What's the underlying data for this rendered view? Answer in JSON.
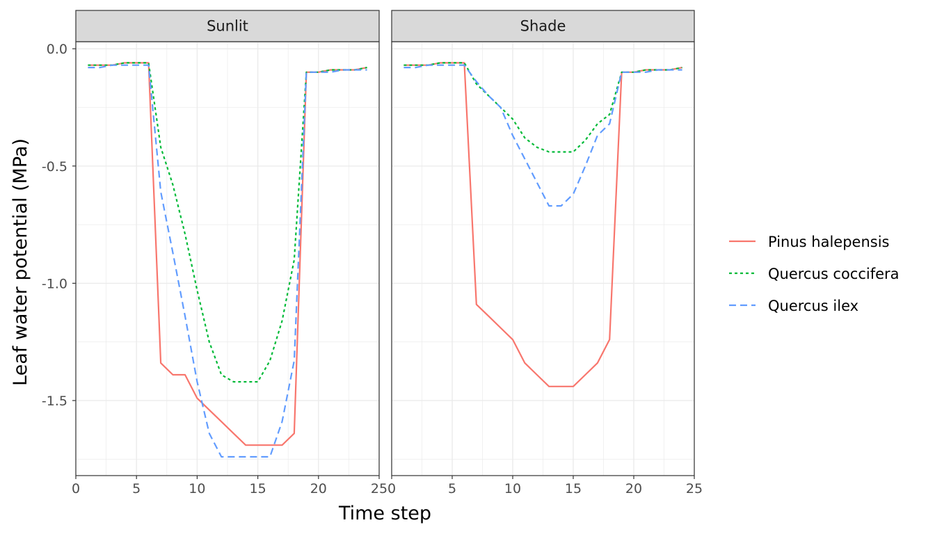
{
  "chart_data": {
    "type": "line",
    "xlabel": "Time step",
    "ylabel": "Leaf water potential (MPa)",
    "xlim": [
      0,
      25
    ],
    "ylim": [
      -1.82,
      0.03
    ],
    "x_ticks": [
      "0",
      "5",
      "10",
      "15",
      "20",
      "25"
    ],
    "y_ticks": [
      "0.0",
      "-0.5",
      "-1.0",
      "-1.5"
    ],
    "grid": true,
    "legend_position": "right",
    "x": [
      1,
      2,
      3,
      4,
      5,
      6,
      7,
      8,
      9,
      10,
      11,
      12,
      13,
      14,
      15,
      16,
      17,
      18,
      19,
      20,
      21,
      22,
      23,
      24
    ],
    "series_styles": [
      {
        "name": "Pinus halepensis",
        "color": "#F8766D",
        "dash": "solid"
      },
      {
        "name": "Quercus coccifera",
        "color": "#00BA38",
        "dash": "dotted"
      },
      {
        "name": "Quercus ilex",
        "color": "#619CFF",
        "dash": "dashed"
      }
    ],
    "panels": [
      {
        "label": "Sunlit",
        "series": [
          {
            "name": "Pinus halepensis",
            "values": [
              -0.07,
              -0.07,
              -0.07,
              -0.06,
              -0.06,
              -0.06,
              -1.34,
              -1.39,
              -1.39,
              -1.49,
              -1.54,
              -1.59,
              -1.64,
              -1.69,
              -1.69,
              -1.69,
              -1.69,
              -1.64,
              -0.1,
              -0.1,
              -0.09,
              -0.09,
              -0.09,
              -0.08
            ]
          },
          {
            "name": "Quercus coccifera",
            "values": [
              -0.07,
              -0.07,
              -0.07,
              -0.06,
              -0.06,
              -0.06,
              -0.42,
              -0.58,
              -0.79,
              -1.03,
              -1.25,
              -1.39,
              -1.42,
              -1.42,
              -1.42,
              -1.33,
              -1.16,
              -0.9,
              -0.1,
              -0.1,
              -0.09,
              -0.09,
              -0.09,
              -0.08
            ]
          },
          {
            "name": "Quercus ilex",
            "values": [
              -0.08,
              -0.08,
              -0.07,
              -0.07,
              -0.07,
              -0.07,
              -0.61,
              -0.87,
              -1.14,
              -1.42,
              -1.64,
              -1.74,
              -1.74,
              -1.74,
              -1.74,
              -1.74,
              -1.59,
              -1.33,
              -0.1,
              -0.1,
              -0.1,
              -0.09,
              -0.09,
              -0.09
            ]
          }
        ]
      },
      {
        "label": "Shade",
        "series": [
          {
            "name": "Pinus halepensis",
            "values": [
              -0.07,
              -0.07,
              -0.07,
              -0.06,
              -0.06,
              -0.06,
              -1.09,
              -1.14,
              -1.19,
              -1.24,
              -1.34,
              -1.39,
              -1.44,
              -1.44,
              -1.44,
              -1.39,
              -1.34,
              -1.24,
              -0.1,
              -0.1,
              -0.09,
              -0.09,
              -0.09,
              -0.08
            ]
          },
          {
            "name": "Quercus coccifera",
            "values": [
              -0.07,
              -0.07,
              -0.07,
              -0.06,
              -0.06,
              -0.06,
              -0.15,
              -0.2,
              -0.25,
              -0.3,
              -0.38,
              -0.42,
              -0.44,
              -0.44,
              -0.44,
              -0.39,
              -0.32,
              -0.28,
              -0.1,
              -0.1,
              -0.09,
              -0.09,
              -0.09,
              -0.08
            ]
          },
          {
            "name": "Quercus ilex",
            "values": [
              -0.08,
              -0.08,
              -0.07,
              -0.07,
              -0.07,
              -0.07,
              -0.14,
              -0.2,
              -0.25,
              -0.37,
              -0.47,
              -0.57,
              -0.67,
              -0.67,
              -0.62,
              -0.5,
              -0.37,
              -0.32,
              -0.1,
              -0.1,
              -0.1,
              -0.09,
              -0.09,
              -0.09
            ]
          }
        ]
      }
    ]
  }
}
